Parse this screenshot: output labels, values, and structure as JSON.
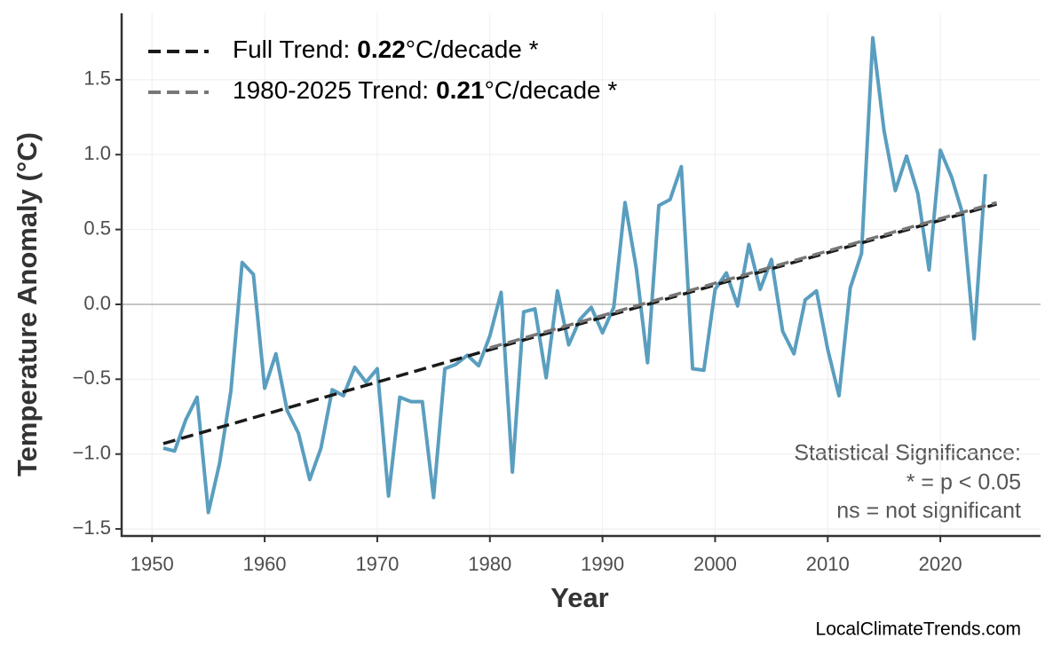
{
  "chart_data": {
    "type": "line",
    "x_label": "Year",
    "y_label": "Temperature Anomaly (°C)",
    "x": [
      1951,
      1952,
      1953,
      1954,
      1955,
      1956,
      1957,
      1958,
      1959,
      1960,
      1961,
      1962,
      1963,
      1964,
      1965,
      1966,
      1967,
      1968,
      1969,
      1970,
      1971,
      1972,
      1973,
      1974,
      1975,
      1976,
      1977,
      1978,
      1979,
      1980,
      1981,
      1982,
      1983,
      1984,
      1985,
      1986,
      1987,
      1988,
      1989,
      1990,
      1991,
      1992,
      1993,
      1994,
      1995,
      1996,
      1997,
      1998,
      1999,
      2000,
      2001,
      2002,
      2003,
      2004,
      2005,
      2006,
      2007,
      2008,
      2009,
      2010,
      2011,
      2012,
      2013,
      2014,
      2015,
      2016,
      2017,
      2018,
      2019,
      2020,
      2021,
      2022,
      2023,
      2024
    ],
    "series": [
      {
        "color": "#5a9ebf",
        "values": [
          -0.96,
          -0.98,
          -0.77,
          -0.62,
          -1.39,
          -1.06,
          -0.58,
          0.28,
          0.2,
          -0.56,
          -0.33,
          -0.71,
          -0.86,
          -1.17,
          -0.96,
          -0.57,
          -0.61,
          -0.42,
          -0.52,
          -0.43,
          -1.28,
          -0.62,
          -0.65,
          -0.65,
          -1.29,
          -0.43,
          -0.4,
          -0.34,
          -0.41,
          -0.21,
          0.08,
          -1.12,
          -0.05,
          -0.03,
          -0.49,
          0.09,
          -0.27,
          -0.1,
          -0.02,
          -0.19,
          -0.02,
          0.68,
          0.24,
          -0.39,
          0.66,
          0.7,
          0.92,
          -0.43,
          -0.44,
          0.1,
          0.21,
          -0.01,
          0.4,
          0.1,
          0.3,
          -0.18,
          -0.33,
          0.03,
          0.09,
          -0.3,
          -0.61,
          0.11,
          0.34,
          1.78,
          1.16,
          0.76,
          0.99,
          0.74,
          0.23,
          1.03,
          0.85,
          0.6,
          -0.23,
          0.87
        ]
      },
      {
        "name": "Full Trend:",
        "slope": 0.22,
        "unit": "°C/decade *",
        "color": "#1a1a1a",
        "dashed": true,
        "x": [
          1951,
          2025
        ],
        "values": [
          -0.93,
          0.67
        ]
      },
      {
        "name": "1980-2025 Trend:",
        "slope": 0.21,
        "unit": "°C/decade *",
        "color": "#777777",
        "dashed": true,
        "x": [
          1980,
          2025
        ],
        "values": [
          -0.29,
          0.68
        ]
      }
    ],
    "xlim": [
      1947.3,
      2028.9
    ],
    "ylim": [
      -1.547,
      1.944
    ],
    "xticks": [
      1950,
      1960,
      1970,
      1980,
      1990,
      2000,
      2010,
      2020
    ],
    "yticks": [
      {
        "value": -1.5,
        "label": "−1.5"
      },
      {
        "value": -1.0,
        "label": "−1.0"
      },
      {
        "value": -0.5,
        "label": "−0.5"
      },
      {
        "value": 0,
        "label": "0.0"
      },
      {
        "value": 0.5,
        "label": "0.5"
      },
      {
        "value": 1.0,
        "label": "1.0"
      },
      {
        "value": 1.5,
        "label": "1.5"
      }
    ],
    "grid": true,
    "legend_position": "upper-left",
    "annotations": [
      "Statistical Significance:",
      "* = p < 0.05",
      "ns = not significant"
    ],
    "source": "LocalClimateTrends.com"
  }
}
